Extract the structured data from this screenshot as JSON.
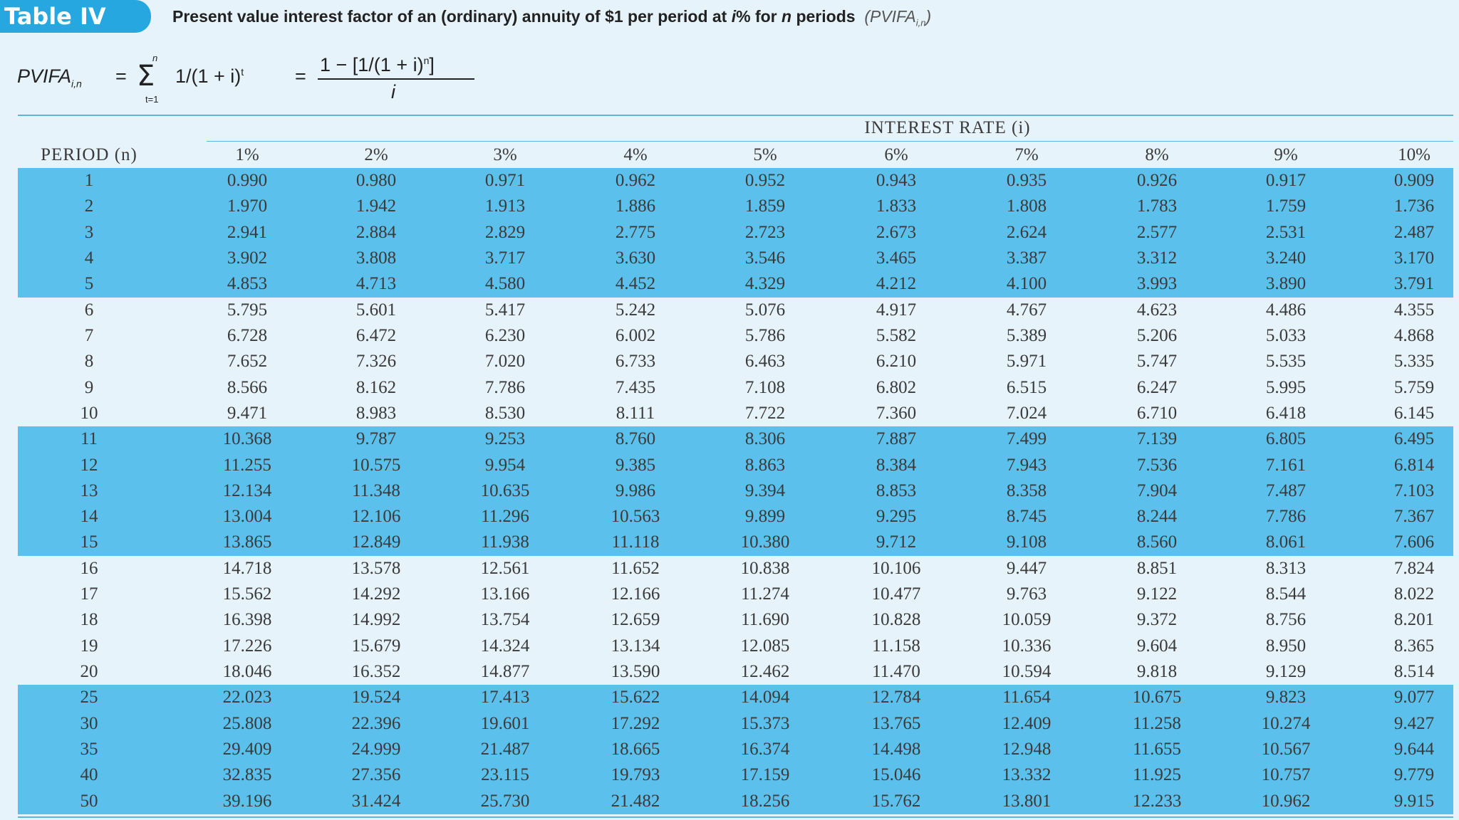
{
  "header": {
    "badge": "Table IV",
    "title": [
      "Present value interest factor of an (ordinary) annuity of $1 per period at ",
      "i",
      "% for ",
      "n",
      " periods"
    ],
    "abbr": "(PVIFA",
    "abbr_sub": "i,n",
    "abbr_end": ")"
  },
  "formula": {
    "lhs": "PVIFA",
    "lhs_sub": "i,n",
    "eq1": "=",
    "sum": "Σ",
    "sum_top": "n",
    "sum_bottom": "t=1",
    "term": "1/(1 + i)",
    "term_sup": "t",
    "eq2": "=",
    "numerator": "1 − [1/(1 + i)",
    "numerator_sup": "n",
    "numerator_end": "]",
    "denominator": "i"
  },
  "table": {
    "group_header": "INTEREST RATE (i)",
    "period_header": "PERIOD (n)",
    "rates": [
      "1%",
      "2%",
      "3%",
      "4%",
      "5%",
      "6%",
      "7%",
      "8%",
      "9%",
      "10%"
    ],
    "periods": [
      "1",
      "2",
      "3",
      "4",
      "5",
      "6",
      "7",
      "8",
      "9",
      "10",
      "11",
      "12",
      "13",
      "14",
      "15",
      "16",
      "17",
      "18",
      "19",
      "20",
      "25",
      "30",
      "35",
      "40",
      "50"
    ],
    "rows": [
      [
        "0.990",
        "0.980",
        "0.971",
        "0.962",
        "0.952",
        "0.943",
        "0.935",
        "0.926",
        "0.917",
        "0.909"
      ],
      [
        "1.970",
        "1.942",
        "1.913",
        "1.886",
        "1.859",
        "1.833",
        "1.808",
        "1.783",
        "1.759",
        "1.736"
      ],
      [
        "2.941",
        "2.884",
        "2.829",
        "2.775",
        "2.723",
        "2.673",
        "2.624",
        "2.577",
        "2.531",
        "2.487"
      ],
      [
        "3.902",
        "3.808",
        "3.717",
        "3.630",
        "3.546",
        "3.465",
        "3.387",
        "3.312",
        "3.240",
        "3.170"
      ],
      [
        "4.853",
        "4.713",
        "4.580",
        "4.452",
        "4.329",
        "4.212",
        "4.100",
        "3.993",
        "3.890",
        "3.791"
      ],
      [
        "5.795",
        "5.601",
        "5.417",
        "5.242",
        "5.076",
        "4.917",
        "4.767",
        "4.623",
        "4.486",
        "4.355"
      ],
      [
        "6.728",
        "6.472",
        "6.230",
        "6.002",
        "5.786",
        "5.582",
        "5.389",
        "5.206",
        "5.033",
        "4.868"
      ],
      [
        "7.652",
        "7.326",
        "7.020",
        "6.733",
        "6.463",
        "6.210",
        "5.971",
        "5.747",
        "5.535",
        "5.335"
      ],
      [
        "8.566",
        "8.162",
        "7.786",
        "7.435",
        "7.108",
        "6.802",
        "6.515",
        "6.247",
        "5.995",
        "5.759"
      ],
      [
        "9.471",
        "8.983",
        "8.530",
        "8.111",
        "7.722",
        "7.360",
        "7.024",
        "6.710",
        "6.418",
        "6.145"
      ],
      [
        "10.368",
        "9.787",
        "9.253",
        "8.760",
        "8.306",
        "7.887",
        "7.499",
        "7.139",
        "6.805",
        "6.495"
      ],
      [
        "11.255",
        "10.575",
        "9.954",
        "9.385",
        "8.863",
        "8.384",
        "7.943",
        "7.536",
        "7.161",
        "6.814"
      ],
      [
        "12.134",
        "11.348",
        "10.635",
        "9.986",
        "9.394",
        "8.853",
        "8.358",
        "7.904",
        "7.487",
        "7.103"
      ],
      [
        "13.004",
        "12.106",
        "11.296",
        "10.563",
        "9.899",
        "9.295",
        "8.745",
        "8.244",
        "7.786",
        "7.367"
      ],
      [
        "13.865",
        "12.849",
        "11.938",
        "11.118",
        "10.380",
        "9.712",
        "9.108",
        "8.560",
        "8.061",
        "7.606"
      ],
      [
        "14.718",
        "13.578",
        "12.561",
        "11.652",
        "10.838",
        "10.106",
        "9.447",
        "8.851",
        "8.313",
        "7.824"
      ],
      [
        "15.562",
        "14.292",
        "13.166",
        "12.166",
        "11.274",
        "10.477",
        "9.763",
        "9.122",
        "8.544",
        "8.022"
      ],
      [
        "16.398",
        "14.992",
        "13.754",
        "12.659",
        "11.690",
        "10.828",
        "10.059",
        "9.372",
        "8.756",
        "8.201"
      ],
      [
        "17.226",
        "15.679",
        "14.324",
        "13.134",
        "12.085",
        "11.158",
        "10.336",
        "9.604",
        "8.950",
        "8.365"
      ],
      [
        "18.046",
        "16.352",
        "14.877",
        "13.590",
        "12.462",
        "11.470",
        "10.594",
        "9.818",
        "9.129",
        "8.514"
      ],
      [
        "22.023",
        "19.524",
        "17.413",
        "15.622",
        "14.094",
        "12.784",
        "11.654",
        "10.675",
        "9.823",
        "9.077"
      ],
      [
        "25.808",
        "22.396",
        "19.601",
        "17.292",
        "15.373",
        "13.765",
        "12.409",
        "11.258",
        "10.274",
        "9.427"
      ],
      [
        "29.409",
        "24.999",
        "21.487",
        "18.665",
        "16.374",
        "14.498",
        "12.948",
        "11.655",
        "10.567",
        "9.644"
      ],
      [
        "32.835",
        "27.356",
        "23.115",
        "19.793",
        "17.159",
        "15.046",
        "13.332",
        "11.925",
        "10.757",
        "9.779"
      ],
      [
        "39.196",
        "31.424",
        "25.730",
        "21.482",
        "18.256",
        "15.762",
        "13.801",
        "12.233",
        "10.962",
        "9.915"
      ]
    ]
  }
}
